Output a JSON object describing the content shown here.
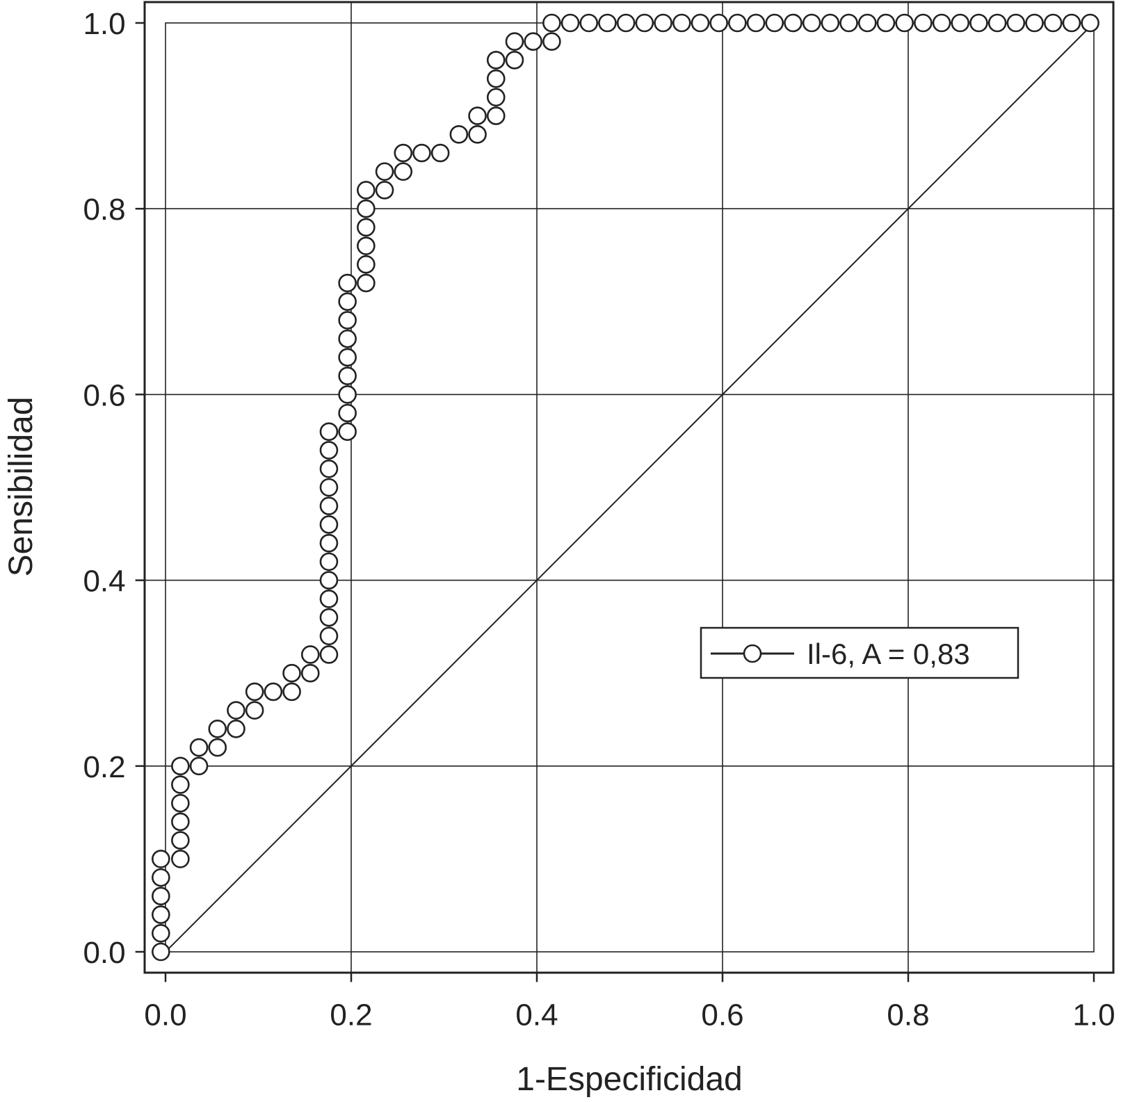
{
  "chart_data": {
    "type": "scatter",
    "title": "",
    "xlabel": "1-Especificidad",
    "ylabel": "Sensibilidad",
    "xlim": [
      -0.022,
      1.022
    ],
    "ylim": [
      -0.022,
      1.022
    ],
    "grid": true,
    "legend_position": "center-right",
    "x_ticks": [
      0.0,
      0.2,
      0.4,
      0.6,
      0.8,
      1.0
    ],
    "y_ticks": [
      0.0,
      0.2,
      0.4,
      0.6,
      0.8,
      1.0
    ],
    "x_tick_labels": [
      "0.0",
      "0.2",
      "0.4",
      "0.6",
      "0.8",
      "1.0"
    ],
    "y_tick_labels": [
      "0.0",
      "0.2",
      "0.4",
      "0.6",
      "0.8",
      "1.0"
    ],
    "reference_line": {
      "x": [
        0,
        1
      ],
      "y": [
        0,
        1
      ]
    },
    "series": [
      {
        "name": "Il-6, A = 0,83",
        "marker": "open-circle",
        "x": [
          -0.005,
          -0.005,
          -0.005,
          -0.005,
          -0.005,
          -0.005,
          0.016,
          0.016,
          0.016,
          0.016,
          0.016,
          0.016,
          0.036,
          0.036,
          0.056,
          0.056,
          0.076,
          0.076,
          0.096,
          0.096,
          0.116,
          0.136,
          0.136,
          0.156,
          0.156,
          0.176,
          0.176,
          0.176,
          0.176,
          0.176,
          0.176,
          0.176,
          0.176,
          0.176,
          0.176,
          0.176,
          0.176,
          0.176,
          0.196,
          0.196,
          0.196,
          0.196,
          0.196,
          0.196,
          0.196,
          0.196,
          0.196,
          0.216,
          0.216,
          0.216,
          0.216,
          0.216,
          0.216,
          0.236,
          0.236,
          0.256,
          0.256,
          0.276,
          0.296,
          0.316,
          0.336,
          0.336,
          0.356,
          0.356,
          0.356,
          0.356,
          0.376,
          0.376,
          0.396,
          0.416,
          0.416,
          0.436,
          0.456,
          0.476,
          0.496,
          0.516,
          0.536,
          0.556,
          0.576,
          0.596,
          0.616,
          0.636,
          0.656,
          0.676,
          0.696,
          0.716,
          0.736,
          0.756,
          0.776,
          0.796,
          0.816,
          0.836,
          0.856,
          0.876,
          0.896,
          0.916,
          0.936,
          0.956,
          0.976,
          0.996
        ],
        "y": [
          0.0,
          0.02,
          0.04,
          0.06,
          0.08,
          0.1,
          0.1,
          0.12,
          0.14,
          0.16,
          0.18,
          0.2,
          0.2,
          0.22,
          0.22,
          0.24,
          0.24,
          0.26,
          0.26,
          0.28,
          0.28,
          0.28,
          0.3,
          0.3,
          0.32,
          0.32,
          0.34,
          0.36,
          0.38,
          0.4,
          0.42,
          0.44,
          0.46,
          0.48,
          0.5,
          0.52,
          0.54,
          0.56,
          0.56,
          0.58,
          0.6,
          0.62,
          0.64,
          0.66,
          0.68,
          0.7,
          0.72,
          0.72,
          0.74,
          0.76,
          0.78,
          0.8,
          0.82,
          0.82,
          0.84,
          0.84,
          0.86,
          0.86,
          0.86,
          0.88,
          0.88,
          0.9,
          0.9,
          0.92,
          0.94,
          0.96,
          0.96,
          0.98,
          0.98,
          0.98,
          1.0,
          1.0,
          1.0,
          1.0,
          1.0,
          1.0,
          1.0,
          1.0,
          1.0,
          1.0,
          1.0,
          1.0,
          1.0,
          1.0,
          1.0,
          1.0,
          1.0,
          1.0,
          1.0,
          1.0,
          1.0,
          1.0,
          1.0,
          1.0,
          1.0,
          1.0,
          1.0,
          1.0,
          1.0,
          1.0
        ]
      }
    ]
  }
}
